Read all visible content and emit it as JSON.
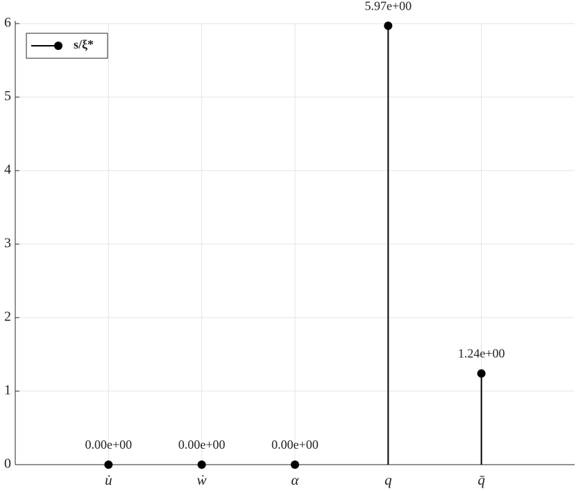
{
  "chart_data": {
    "type": "stem",
    "categories": [
      "u̇",
      "ẇ",
      "α",
      "q",
      "q̄"
    ],
    "series": [
      {
        "name": "s/ξ*",
        "color": "#000000",
        "values": [
          0,
          0,
          0,
          5.97,
          1.24
        ],
        "value_labels": [
          "0.00e+00",
          "0.00e+00",
          "0.00e+00",
          "5.97e+00",
          "1.24e+00"
        ]
      }
    ],
    "ylim": [
      0,
      6
    ],
    "yticks": [
      0,
      1,
      2,
      3,
      4,
      5,
      6
    ],
    "grid": true,
    "legend": "upper left"
  }
}
